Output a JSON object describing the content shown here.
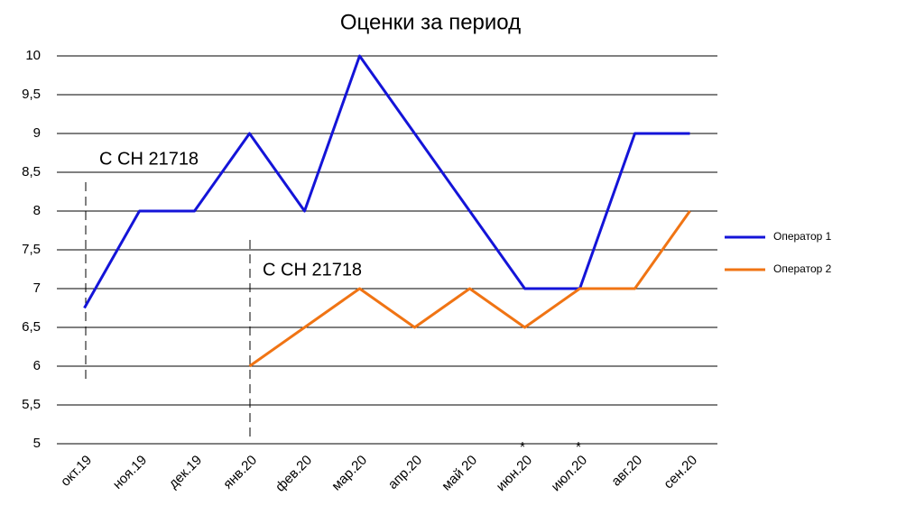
{
  "chart_data": {
    "type": "line",
    "title": "Оценки за период",
    "categories": [
      "окт.19",
      "ноя.19",
      "дек.19",
      "янв.20",
      "фев.20",
      "мар.20",
      "апр.20",
      "май 20",
      "июн.20",
      "июл.20",
      "авг.20",
      "сен.20"
    ],
    "series": [
      {
        "name": "Оператор 1",
        "color": "#1414d8",
        "values": [
          6.75,
          8,
          8,
          9,
          8,
          10,
          9,
          8,
          7,
          7,
          9,
          9
        ]
      },
      {
        "name": "Оператор 2",
        "color": "#f07414",
        "values": [
          null,
          null,
          null,
          6,
          6.5,
          7,
          6.5,
          7,
          6.5,
          7,
          7,
          8
        ]
      }
    ],
    "ylim": [
      5,
      10
    ],
    "yticks": [
      5,
      {
        "value": 5.5,
        "label": "5,5"
      },
      6,
      {
        "value": 6.5,
        "label": "6,5"
      },
      7,
      {
        "value": 7.5,
        "label": "7,5"
      },
      8,
      {
        "value": 8.5,
        "label": "8,5"
      },
      9,
      {
        "value": 9.5,
        "label": "9,5"
      },
      10
    ],
    "grid": true,
    "legend": "right",
    "annotations": [
      "С СН 21718",
      "С СН 21718",
      "*",
      "*"
    ]
  }
}
